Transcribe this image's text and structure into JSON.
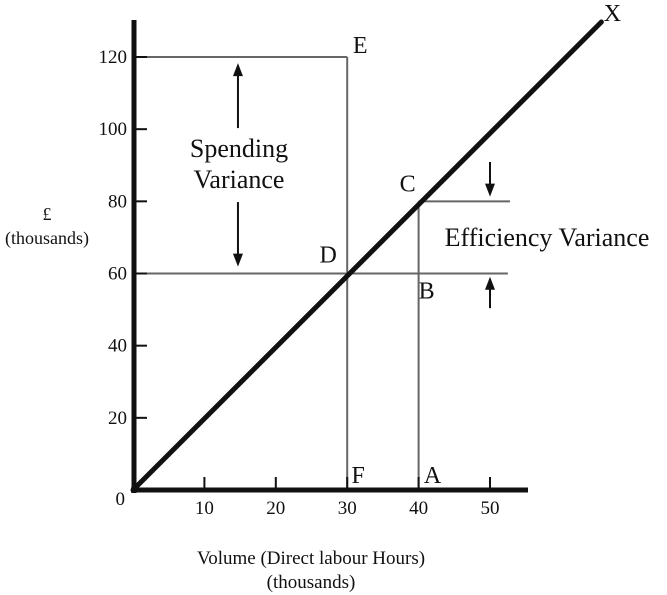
{
  "chart_data": {
    "type": "line",
    "title": "",
    "xlabel": "Volume (Direct labour Hours)",
    "xlabel_sub": "(thousands)",
    "ylabel": "£",
    "ylabel_sub": "(thousands)",
    "origin_label": "0",
    "xlim": [
      0,
      55
    ],
    "ylim": [
      0,
      130
    ],
    "x_ticks": [
      10,
      20,
      30,
      40,
      50
    ],
    "y_ticks": [
      20,
      40,
      60,
      80,
      100,
      120
    ],
    "grid": false,
    "legend": false,
    "series": [
      {
        "name": "X",
        "type": "line",
        "description": "flexed budget / standard cost line through origin, slope 2 (£ per direct labour hour)",
        "points_xy": [
          [
            0,
            0
          ],
          [
            65.6,
            129.7
          ]
        ]
      }
    ],
    "guide_lines": [
      {
        "x1": 0,
        "y1": 120,
        "x2": 30,
        "y2": 120
      },
      {
        "x1": 30,
        "y1": 120,
        "x2": 30,
        "y2": 0
      },
      {
        "x1": 0,
        "y1": 60,
        "x2": 52.5,
        "y2": 60
      },
      {
        "x1": 40,
        "y1": 80,
        "x2": 40,
        "y2": 0
      },
      {
        "x1": 40,
        "y1": 80,
        "x2": 52.8,
        "y2": 80
      }
    ],
    "points": [
      {
        "label": "E",
        "x": 30,
        "y": 120
      },
      {
        "label": "C",
        "x": 40,
        "y": 80
      },
      {
        "label": "D",
        "x": 30,
        "y": 60
      },
      {
        "label": "B",
        "x": 40,
        "y": 60
      },
      {
        "label": "F",
        "x": 30,
        "y": 0
      },
      {
        "label": "A",
        "x": 40,
        "y": 0
      },
      {
        "label": "X",
        "x": 65.6,
        "y": 129.7
      }
    ],
    "arrows": [
      {
        "group": "spending-variance",
        "x": 14.7,
        "tail_y": 100.3,
        "tip_y": 118.3
      },
      {
        "group": "spending-variance",
        "x": 14.7,
        "tail_y": 79.8,
        "tip_y": 61.9
      },
      {
        "group": "efficiency-variance",
        "x": 50,
        "tail_y": 90.9,
        "tip_y": 81.3
      },
      {
        "group": "efficiency-variance",
        "x": 50,
        "tail_y": 50.4,
        "tip_y": 59.1
      }
    ],
    "annotations": [
      {
        "id": "spending-variance",
        "lines": [
          "Spending",
          "Variance"
        ],
        "between_y": [
          60,
          120
        ]
      },
      {
        "id": "efficiency-variance",
        "text": "Efficiency Variance",
        "between_y": [
          60,
          80
        ]
      }
    ],
    "colors": {
      "axis": "#111111",
      "guide": "#666666",
      "text": "#111111"
    }
  }
}
